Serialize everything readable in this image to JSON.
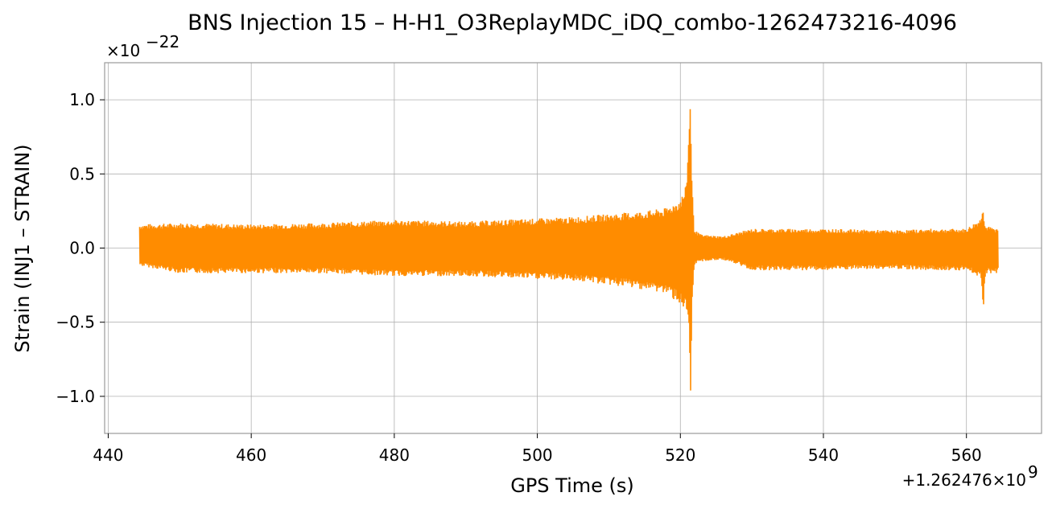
{
  "chart_data": {
    "type": "line",
    "title": "BNS Injection 15 – H-H1_O3ReplayMDC_iDQ_combo-1262473216-4096",
    "xlabel": "GPS Time (s)",
    "ylabel": "Strain (INJ1 – STRAIN)",
    "x_offset_label": "+1.262476×10",
    "x_offset_exponent": "9",
    "y_scale_label": "×10",
    "y_scale_exponent": "−22",
    "xlim": [
      439.5,
      570.5
    ],
    "ylim": [
      -1.25,
      1.25
    ],
    "x_ticks": [
      440,
      460,
      480,
      500,
      520,
      540,
      560
    ],
    "x_tick_labels": [
      "440",
      "460",
      "480",
      "500",
      "520",
      "540",
      "560"
    ],
    "y_ticks": [
      -1.0,
      -0.5,
      0.0,
      0.5,
      1.0
    ],
    "y_tick_labels": [
      "−1.0",
      "−0.5",
      "0.0",
      "0.5",
      "1.0"
    ],
    "grid": true,
    "color": "#ff8c00",
    "series": [
      {
        "x": [
          444.4,
          450,
          460,
          470,
          480,
          490,
          495,
          500,
          505,
          510,
          515,
          518,
          520,
          520.8,
          521.2,
          521.4,
          521.6,
          521.9,
          522.3,
          523,
          526,
          530,
          540,
          550,
          555,
          560,
          562.0,
          562.3,
          562.6,
          564.4
        ],
        "upper": [
          0.16,
          0.17,
          0.16,
          0.17,
          0.19,
          0.18,
          0.19,
          0.2,
          0.21,
          0.23,
          0.25,
          0.27,
          0.33,
          0.42,
          0.8,
          1.14,
          0.5,
          0.14,
          0.11,
          0.09,
          0.08,
          0.13,
          0.13,
          0.12,
          0.13,
          0.13,
          0.2,
          0.31,
          0.15,
          0.13
        ],
        "lower": [
          -0.12,
          -0.17,
          -0.17,
          -0.17,
          -0.19,
          -0.19,
          -0.2,
          -0.21,
          -0.22,
          -0.25,
          -0.28,
          -0.31,
          -0.38,
          -0.45,
          -0.62,
          -1.14,
          -0.4,
          -0.12,
          -0.1,
          -0.09,
          -0.08,
          -0.15,
          -0.15,
          -0.14,
          -0.15,
          -0.15,
          -0.2,
          -0.43,
          -0.17,
          -0.17
        ]
      }
    ]
  }
}
